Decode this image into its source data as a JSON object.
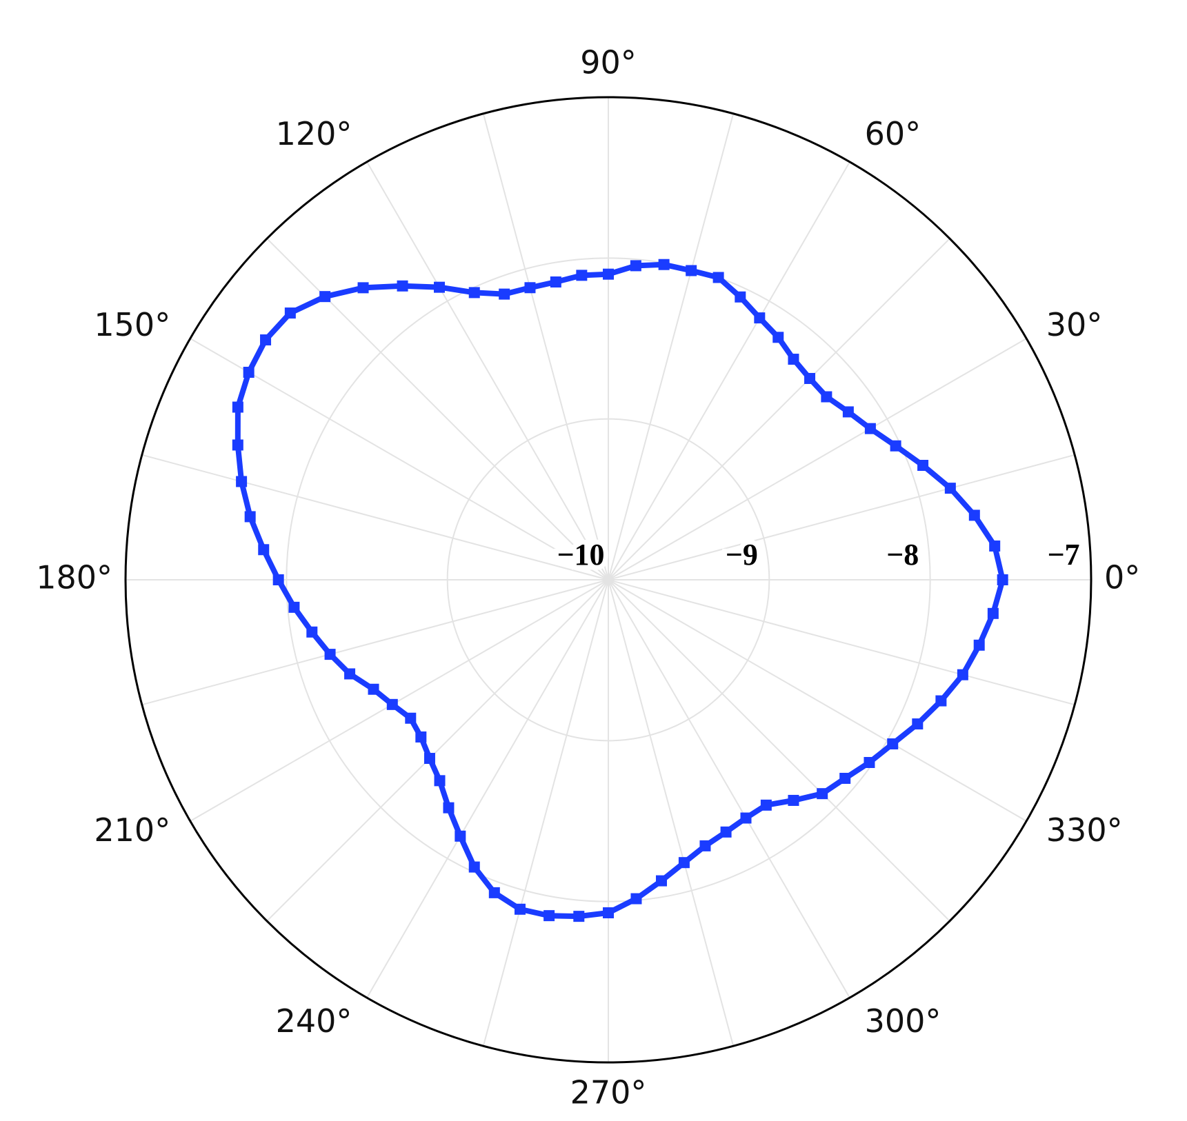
{
  "chart_data": {
    "type": "polar",
    "x": [
      0,
      5,
      10,
      15,
      20,
      25,
      30,
      35,
      40,
      45,
      50,
      55,
      60,
      65,
      70,
      75,
      80,
      85,
      90,
      95,
      100,
      105,
      110,
      115,
      120,
      125,
      130,
      135,
      140,
      145,
      150,
      155,
      160,
      165,
      170,
      175,
      180,
      185,
      190,
      195,
      200,
      205,
      210,
      215,
      220,
      225,
      230,
      235,
      240,
      245,
      250,
      255,
      260,
      265,
      270,
      275,
      280,
      285,
      290,
      295,
      300,
      305,
      310,
      315,
      320,
      325,
      330,
      335,
      340,
      345,
      350,
      355
    ],
    "series": [
      {
        "color": "#1a3cff",
        "values": [
          -7.55,
          -7.59,
          -7.69,
          -7.8,
          -7.92,
          -8.03,
          -8.12,
          -8.18,
          -8.23,
          -8.23,
          -8.21,
          -8.16,
          -8.12,
          -8.06,
          -8.0,
          -8.01,
          -8.01,
          -8.04,
          -8.1,
          -8.1,
          -8.12,
          -8.12,
          -8.11,
          -8.03,
          -7.9,
          -7.77,
          -7.63,
          -7.51,
          -7.42,
          -7.4,
          -7.42,
          -7.46,
          -7.55,
          -7.64,
          -7.74,
          -7.85,
          -7.95,
          -8.04,
          -8.13,
          -8.21,
          -8.29,
          -8.39,
          -8.45,
          -8.5,
          -8.48,
          -8.43,
          -8.37,
          -8.27,
          -8.16,
          -8.03,
          -7.93,
          -7.88,
          -7.88,
          -7.9,
          -7.93,
          -8.01,
          -8.1,
          -8.18,
          -8.24,
          -8.27,
          -8.29,
          -8.29,
          -8.21,
          -8.12,
          -8.08,
          -8.02,
          -7.96,
          -7.88,
          -7.8,
          -7.72,
          -7.66,
          -7.6
        ]
      }
    ],
    "ylim": [
      -10,
      -7
    ],
    "yticks": [
      {
        "value": -10,
        "label": "−10"
      },
      {
        "value": -9,
        "label": "−9"
      },
      {
        "value": -8,
        "label": "−8"
      },
      {
        "value": -7,
        "label": "−7"
      }
    ],
    "xlim": [
      0,
      360
    ],
    "xticks": [
      {
        "value": 0,
        "label": "0°"
      },
      {
        "value": 30,
        "label": "30°"
      },
      {
        "value": 60,
        "label": "60°"
      },
      {
        "value": 90,
        "label": "90°"
      },
      {
        "value": 120,
        "label": "120°"
      },
      {
        "value": 150,
        "label": "150°"
      },
      {
        "value": 180,
        "label": "180°"
      },
      {
        "value": 210,
        "label": "210°"
      },
      {
        "value": 240,
        "label": "240°"
      },
      {
        "value": 270,
        "label": "270°"
      },
      {
        "value": 300,
        "label": "300°"
      },
      {
        "value": 330,
        "label": "330°"
      }
    ],
    "xminorticks": [
      15,
      45,
      75,
      105,
      135,
      165,
      195,
      225,
      255,
      285,
      315,
      345
    ],
    "grid": true
  }
}
